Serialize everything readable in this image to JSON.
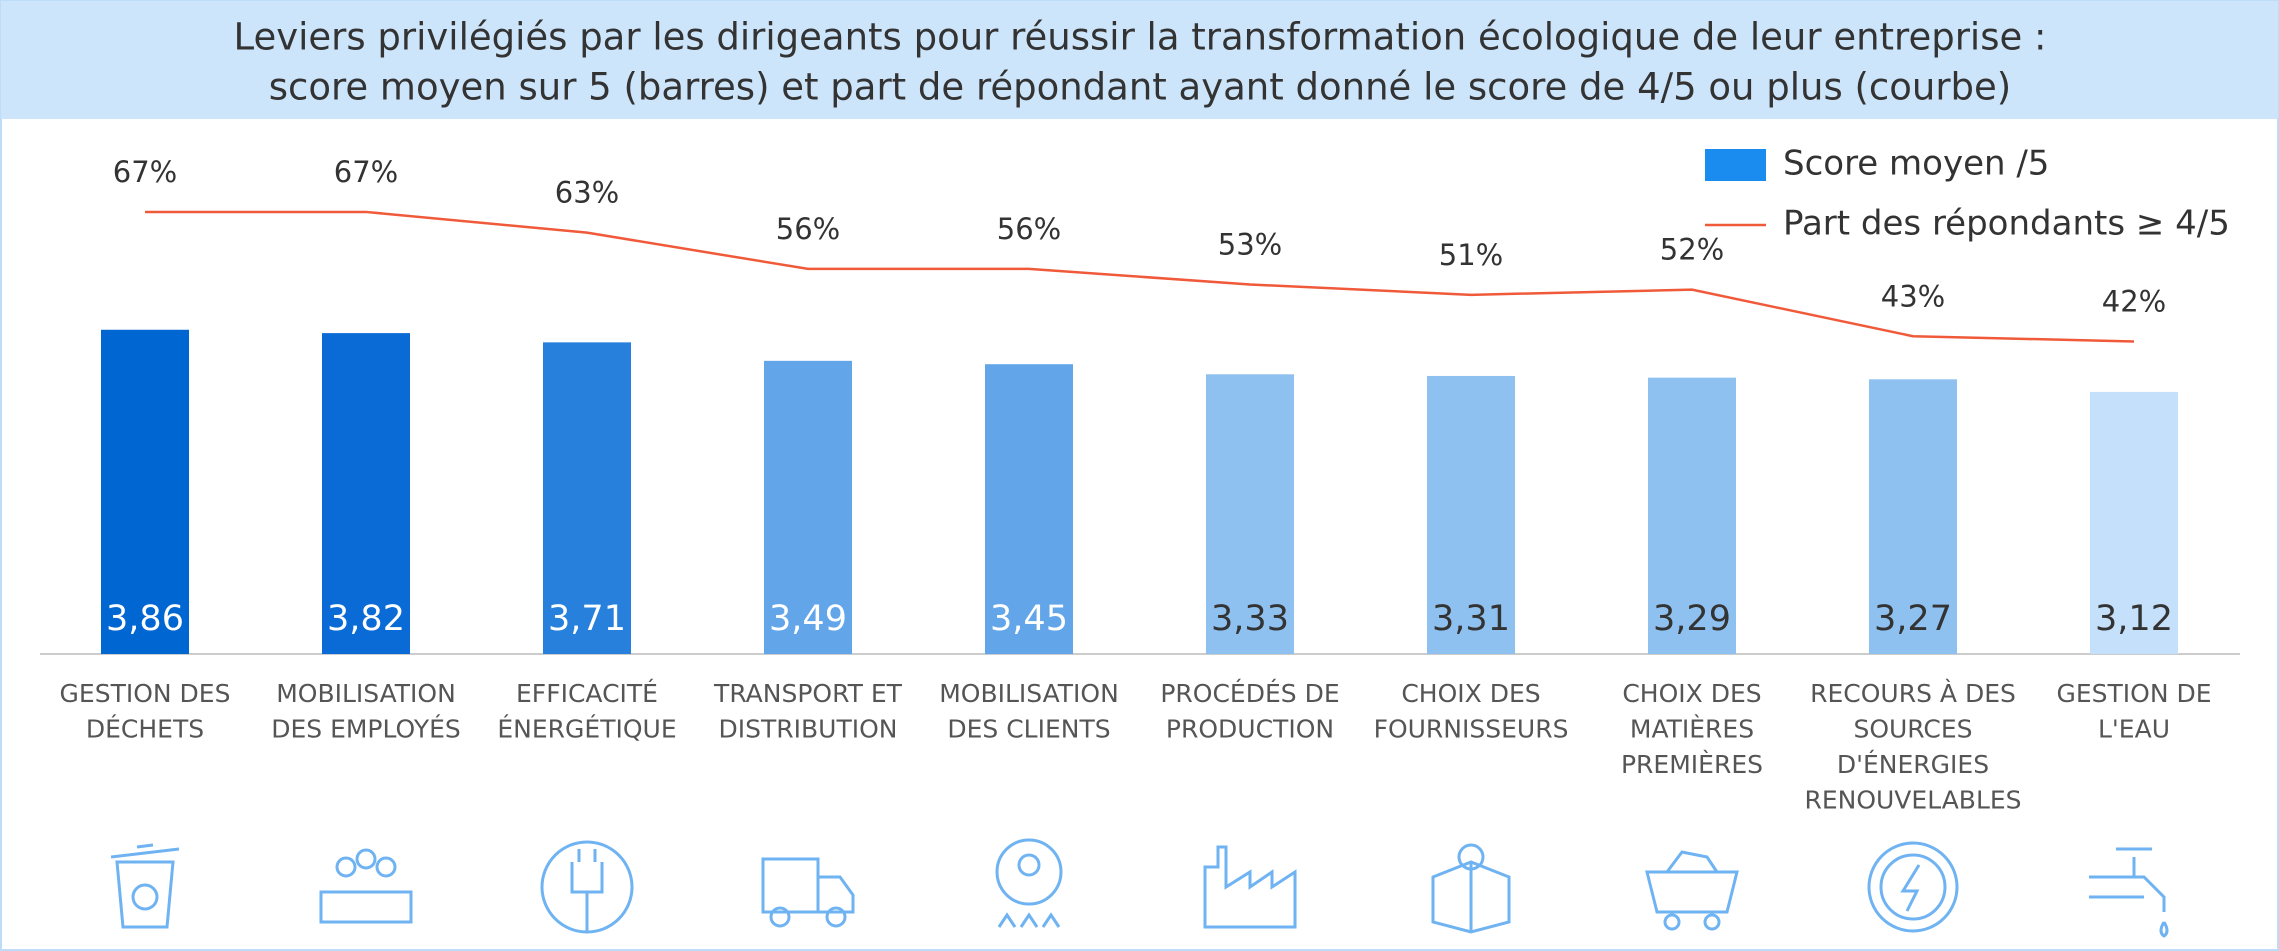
{
  "chart_data": {
    "type": "bar_line",
    "title": [
      "Leviers privilégiés par les dirigeants pour réussir la transformation écologique de leur entreprise :",
      "score moyen sur 5 (barres) et part de répondant ayant donné le score de 4/5 ou plus (courbe)"
    ],
    "categories": [
      [
        "GESTION DES",
        "DÉCHETS"
      ],
      [
        "MOBILISATION",
        "DES EMPLOYÉS"
      ],
      [
        "EFFICACITÉ",
        "ÉNERGÉTIQUE"
      ],
      [
        "TRANSPORT ET",
        "DISTRIBUTION"
      ],
      [
        "MOBILISATION",
        "DES CLIENTS"
      ],
      [
        "PROCÉDÉS DE",
        "PRODUCTION"
      ],
      [
        "CHOIX DES",
        "FOURNISSEURS"
      ],
      [
        "CHOIX DES",
        "MATIÈRES",
        "PREMIÈRES"
      ],
      [
        "RECOURS À DES",
        "SOURCES",
        "D'ÉNERGIES",
        "RENOUVELABLES"
      ],
      [
        "GESTION DE",
        "L'EAU"
      ]
    ],
    "ylim": [
      0,
      5
    ],
    "y2lim": [
      0,
      100
    ],
    "legend": "top-right",
    "series": [
      {
        "name": "Score moyen /5",
        "type": "bar",
        "color": "#1a8cf0",
        "colors": [
          "#0066d2",
          "#0a6bd6",
          "#2680dc",
          "#62a6e9",
          "#62a6e9",
          "#8fc1f0",
          "#8fc1f0",
          "#8fc1f0",
          "#8fc1f0",
          "#c5e0fb"
        ],
        "values": [
          3.86,
          3.82,
          3.71,
          3.49,
          3.45,
          3.33,
          3.31,
          3.29,
          3.27,
          3.12
        ],
        "value_labels": [
          "3,86",
          "3,82",
          "3,71",
          "3,49",
          "3,45",
          "3,33",
          "3,31",
          "3,29",
          "3,27",
          "3,12"
        ]
      },
      {
        "name": "Part des répondants ≥ 4/5",
        "type": "line",
        "axis": "y2",
        "color": "#f05a3a",
        "values": [
          67,
          67,
          63,
          56,
          56,
          53,
          51,
          52,
          43,
          42
        ],
        "value_labels": [
          "67%",
          "67%",
          "63%",
          "56%",
          "56%",
          "53%",
          "51%",
          "52%",
          "43%",
          "42%"
        ]
      }
    ]
  }
}
